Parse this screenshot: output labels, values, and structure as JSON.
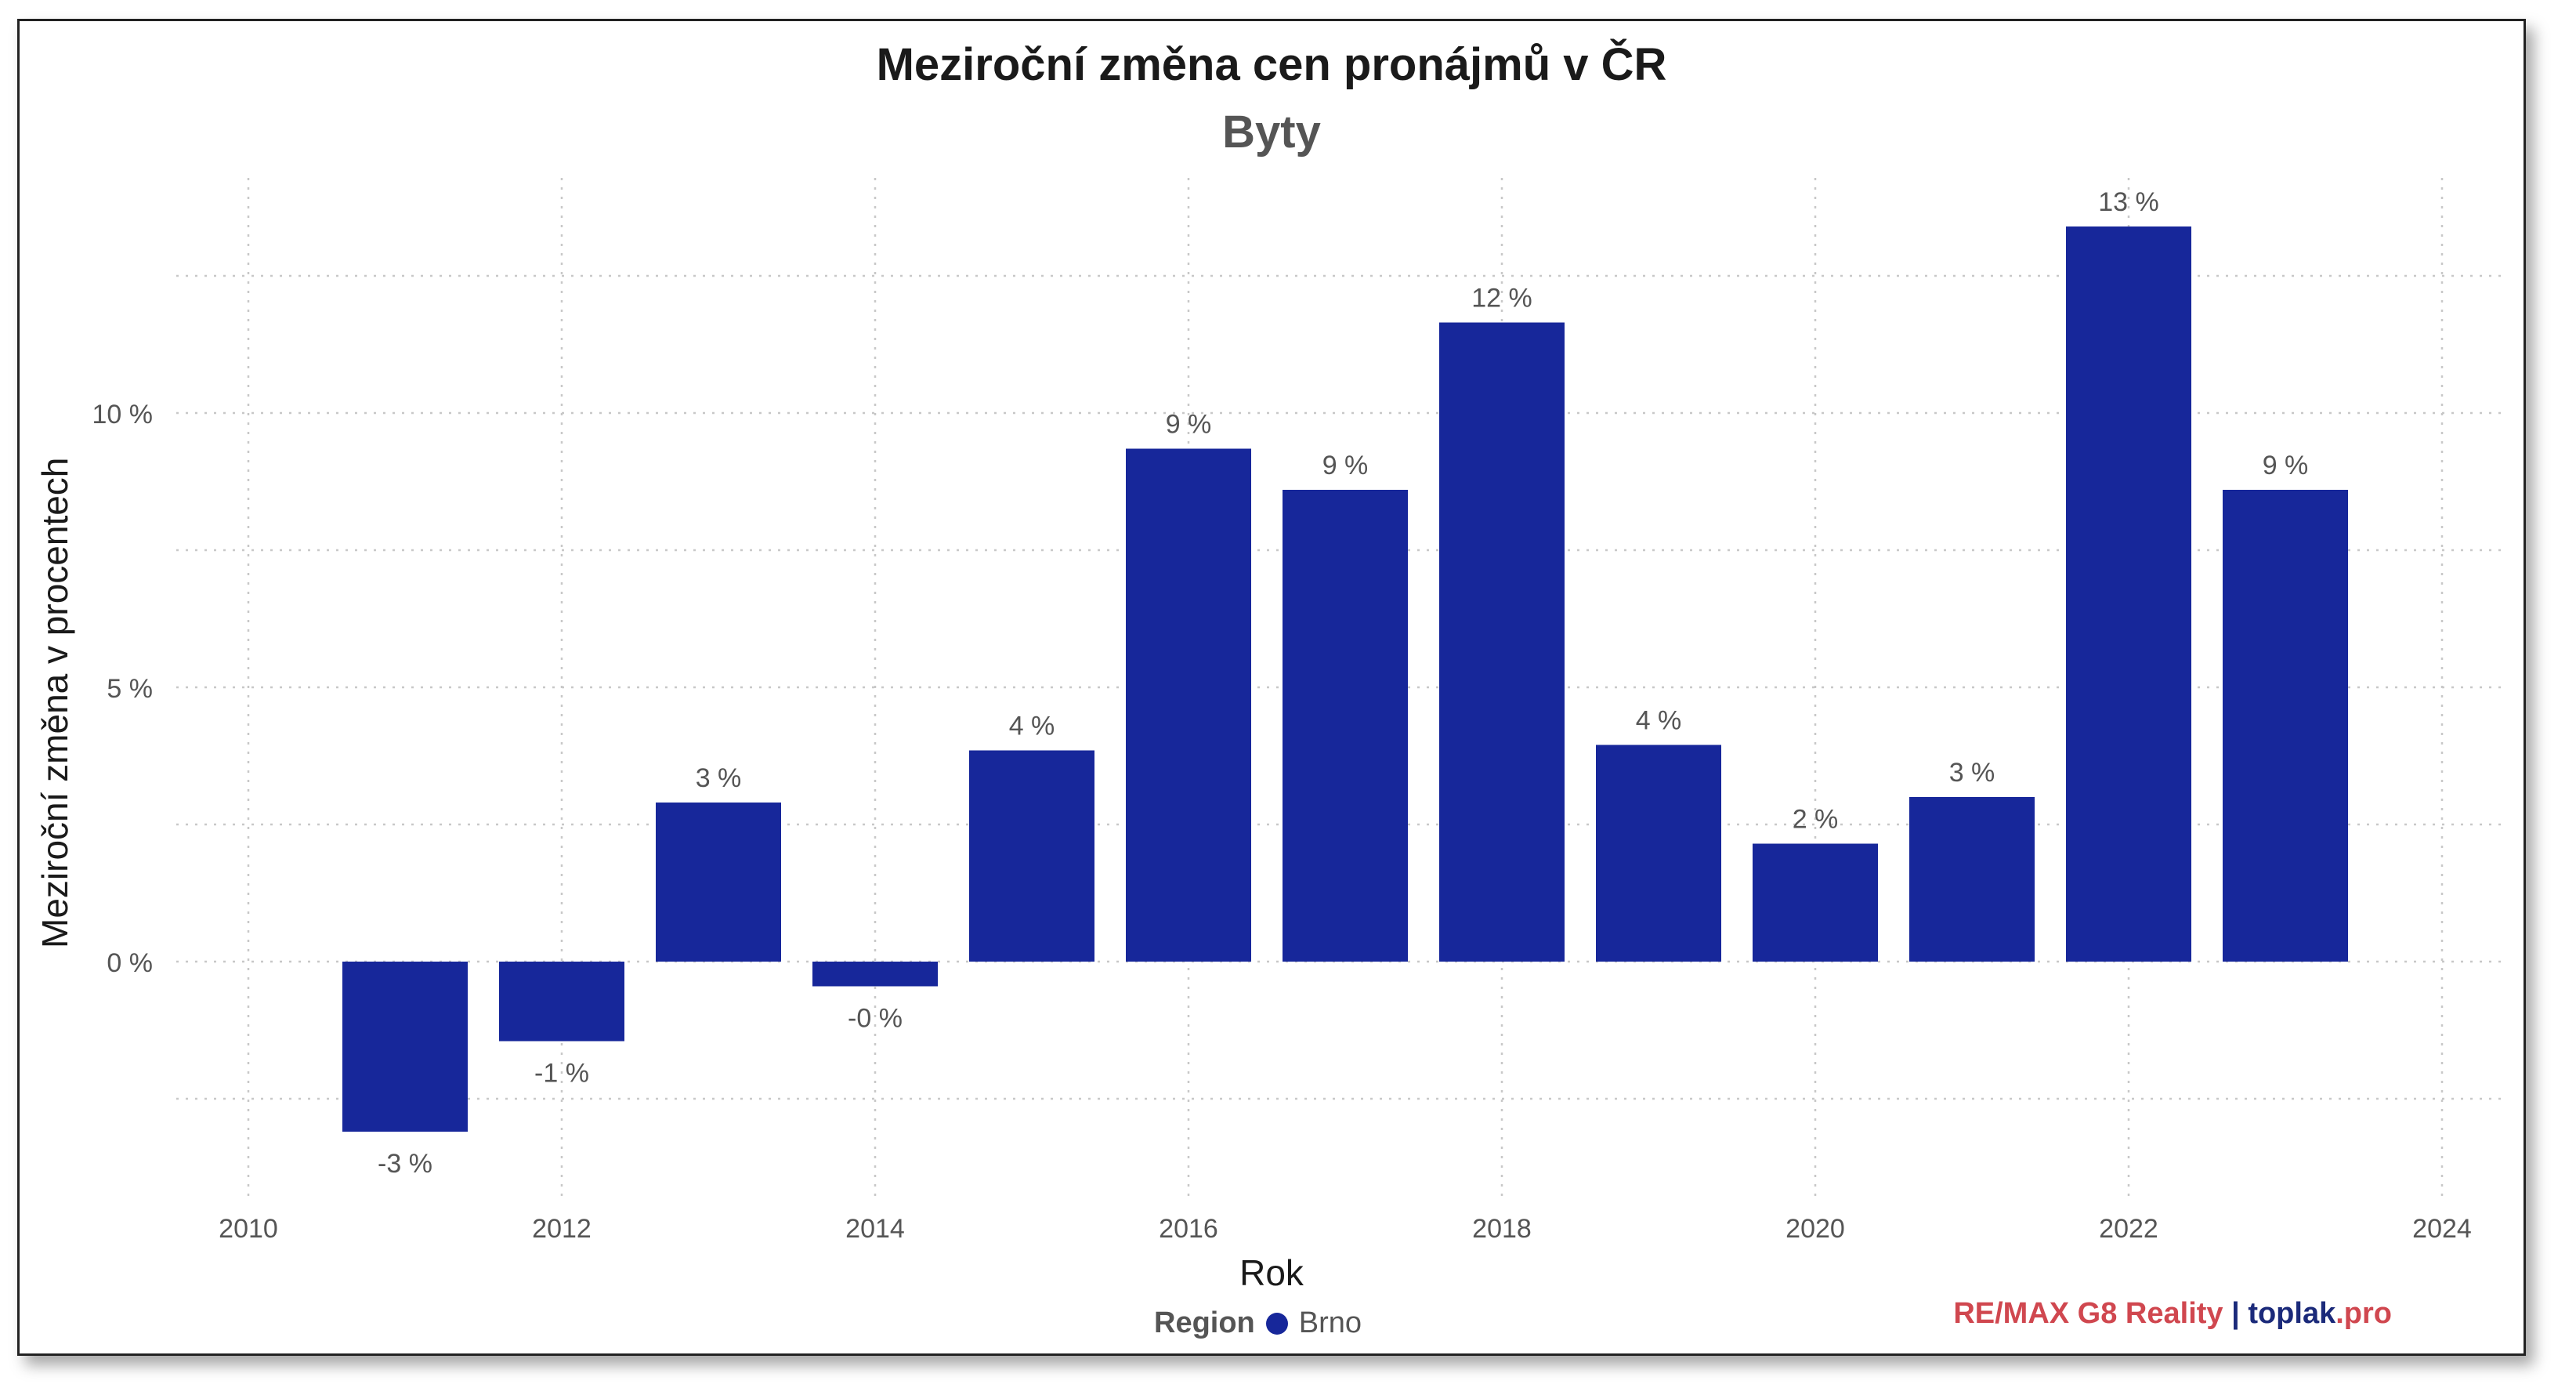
{
  "title": "Meziroční změna cen pronájmů v ČR",
  "subtitle": "Byty",
  "chart_data": {
    "type": "bar",
    "x": [
      2011,
      2012,
      2013,
      2014,
      2015,
      2016,
      2017,
      2018,
      2019,
      2020,
      2021,
      2022,
      2023
    ],
    "values": [
      -3.1,
      -1.45,
      2.9,
      -0.45,
      3.85,
      9.35,
      8.6,
      11.65,
      3.95,
      2.15,
      3.0,
      13.4,
      8.6
    ],
    "data_labels": [
      "-3 %",
      "-1 %",
      "3 %",
      "-0 %",
      "4 %",
      "9 %",
      "9 %",
      "12 %",
      "4 %",
      "2 %",
      "3 %",
      "13 %",
      "9 %"
    ],
    "xlabel": "Rok",
    "ylabel": "Meziroční změna v procentech",
    "xlim": [
      2010,
      2024
    ],
    "ylim": [
      -4.4,
      14.3
    ],
    "x_ticks": [
      "2010",
      "2012",
      "2014",
      "2016",
      "2018",
      "2020",
      "2022",
      "2024"
    ],
    "y_ticks": [
      "0 %",
      "5 %",
      "10 %"
    ],
    "grid": true,
    "bar_color": "#17279a",
    "legend": {
      "title": "Region",
      "placement": "bottom",
      "items": [
        {
          "label": "Brno",
          "color": "#17279a"
        }
      ]
    },
    "series": [
      {
        "name": "Brno"
      }
    ]
  },
  "credit": {
    "remax": "RE/MAX G8 Reality",
    "separator": "|",
    "toplak": "toplak",
    "pro": ".pro"
  }
}
